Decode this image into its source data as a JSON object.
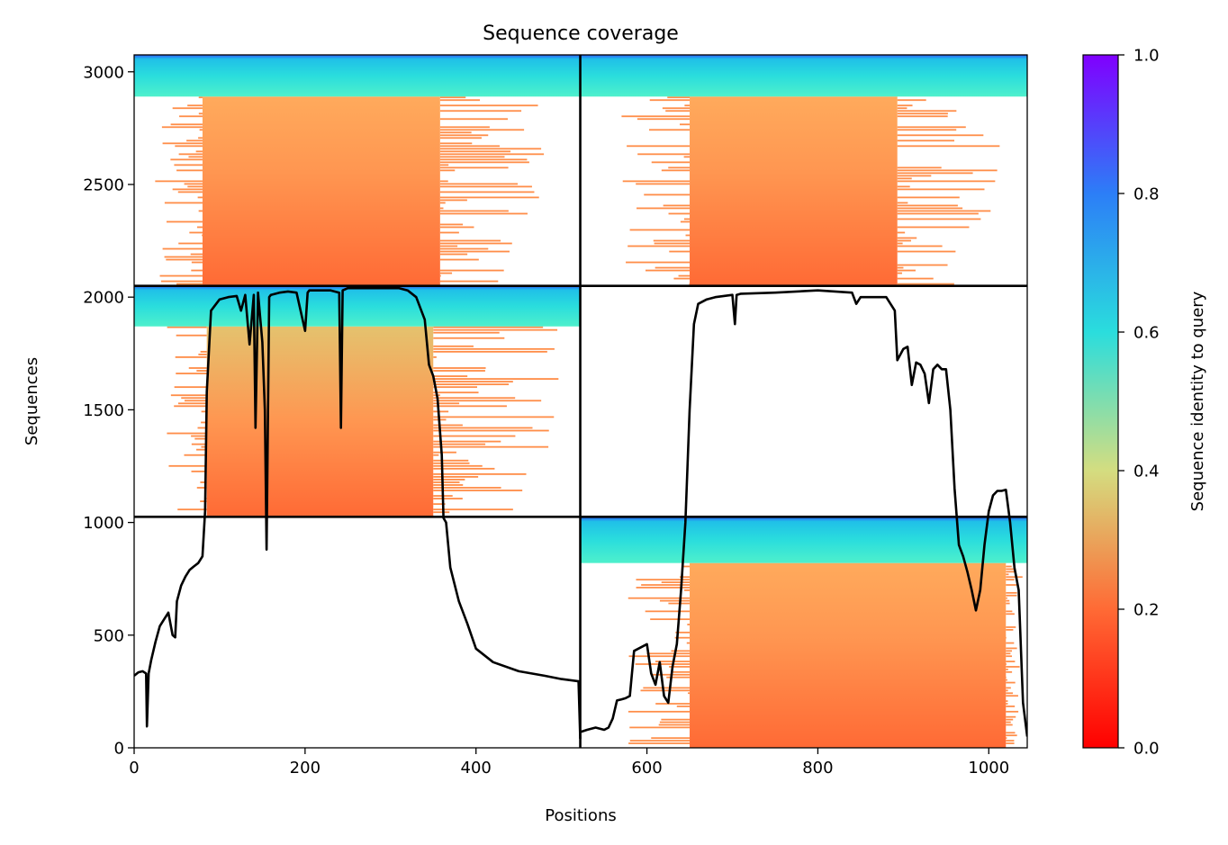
{
  "chart_data": {
    "type": "heatmap",
    "title": "Sequence coverage",
    "xlabel": "Positions",
    "ylabel": "Sequences",
    "xlim": [
      0,
      1045
    ],
    "ylim": [
      0,
      3075
    ],
    "x_ticks": [
      0,
      200,
      400,
      600,
      800,
      1000
    ],
    "y_ticks": [
      0,
      500,
      1000,
      1500,
      2000,
      2500,
      3000
    ],
    "colormap": "rainbow",
    "colorbar": {
      "label": "Sequence identity to query",
      "range": [
        0,
        1
      ],
      "ticks": [
        "0.0",
        "0.2",
        "0.4",
        "0.6",
        "0.8",
        "1.0"
      ],
      "colors": [
        "#ff0000",
        "#ff6a35",
        "#d4dd80",
        "#2adddd",
        "#2c7ef7",
        "#8000ff"
      ]
    },
    "chain_boundaries": {
      "x": [
        522
      ],
      "y": [
        1025,
        2050
      ]
    },
    "blocks": [
      {
        "chain": "A",
        "x_start": 0,
        "x_end": 522,
        "y_start": 2050,
        "y_end": 3075,
        "high_identity_rows": [
          2890,
          3075
        ],
        "core_x": [
          80,
          358
        ],
        "extended_x": [
          10,
          500
        ]
      },
      {
        "chain": "B",
        "x_start": 522,
        "x_end": 1045,
        "y_start": 2050,
        "y_end": 3075,
        "high_identity_rows": [
          2890,
          3075
        ],
        "core_x": [
          650,
          893
        ],
        "extended_x": [
          550,
          1040
        ]
      },
      {
        "chain": "A",
        "x_start": 0,
        "x_end": 522,
        "y_start": 1025,
        "y_end": 2050,
        "high_identity_rows": [
          1870,
          2050
        ],
        "core_x": [
          85,
          350
        ],
        "extended_x": [
          25,
          520
        ]
      },
      {
        "chain": "B",
        "x_start": 522,
        "x_end": 1045,
        "y_start": 0,
        "y_end": 1025,
        "high_identity_rows": [
          820,
          1025
        ],
        "core_x": [
          650,
          1020
        ],
        "extended_x": [
          560,
          1040
        ]
      }
    ],
    "series": [
      {
        "type": "line",
        "color": "#000000",
        "x": [
          0,
          5,
          10,
          14,
          15,
          17,
          20,
          25,
          30,
          35,
          40,
          45,
          48,
          50,
          55,
          60,
          65,
          70,
          75,
          80,
          83,
          85,
          90,
          100,
          110,
          120,
          125,
          130,
          135,
          140,
          142,
          145,
          150,
          153,
          155,
          158,
          160,
          170,
          180,
          190,
          200,
          203,
          205,
          210,
          220,
          230,
          240,
          242,
          244,
          250,
          260,
          270,
          280,
          290,
          300,
          310,
          320,
          330,
          340,
          345,
          350,
          355,
          360,
          362,
          365,
          370,
          380,
          390,
          400,
          420,
          450,
          480,
          500,
          520,
          522
        ],
        "y": [
          320,
          335,
          340,
          330,
          95,
          330,
          390,
          470,
          540,
          570,
          600,
          500,
          490,
          650,
          720,
          760,
          790,
          805,
          820,
          850,
          1050,
          1580,
          1940,
          1990,
          2000,
          2005,
          1940,
          2010,
          1790,
          2010,
          1420,
          2020,
          1800,
          1500,
          880,
          2000,
          2010,
          2020,
          2025,
          2020,
          1850,
          2020,
          2030,
          2030,
          2030,
          2030,
          2020,
          1420,
          2030,
          2040,
          2040,
          2040,
          2040,
          2040,
          2040,
          2040,
          2030,
          2000,
          1900,
          1700,
          1650,
          1550,
          1300,
          1020,
          1000,
          800,
          650,
          550,
          440,
          380,
          340,
          320,
          305,
          295,
          40
        ]
      },
      {
        "type": "line",
        "color": "#000000",
        "x": [
          522,
          530,
          540,
          550,
          555,
          560,
          565,
          570,
          575,
          580,
          585,
          590,
          600,
          605,
          610,
          615,
          620,
          625,
          630,
          635,
          640,
          645,
          650,
          655,
          660,
          670,
          680,
          700,
          703,
          705,
          710,
          750,
          800,
          840,
          845,
          850,
          880,
          890,
          893,
          900,
          905,
          910,
          915,
          920,
          925,
          930,
          935,
          940,
          945,
          950,
          955,
          960,
          965,
          970,
          975,
          980,
          985,
          990,
          995,
          1000,
          1005,
          1010,
          1015,
          1020,
          1025,
          1030,
          1035,
          1040,
          1045
        ],
        "y": [
          70,
          80,
          90,
          80,
          90,
          130,
          210,
          215,
          220,
          230,
          430,
          440,
          460,
          330,
          280,
          380,
          230,
          200,
          360,
          460,
          700,
          1000,
          1500,
          1880,
          1970,
          1990,
          2000,
          2010,
          1880,
          2010,
          2015,
          2020,
          2030,
          2020,
          1970,
          2000,
          2000,
          1940,
          1720,
          1770,
          1780,
          1610,
          1710,
          1700,
          1660,
          1530,
          1680,
          1700,
          1680,
          1680,
          1500,
          1150,
          900,
          850,
          780,
          700,
          610,
          700,
          900,
          1050,
          1120,
          1140,
          1140,
          1145,
          1000,
          800,
          700,
          200,
          50
        ]
      }
    ]
  }
}
